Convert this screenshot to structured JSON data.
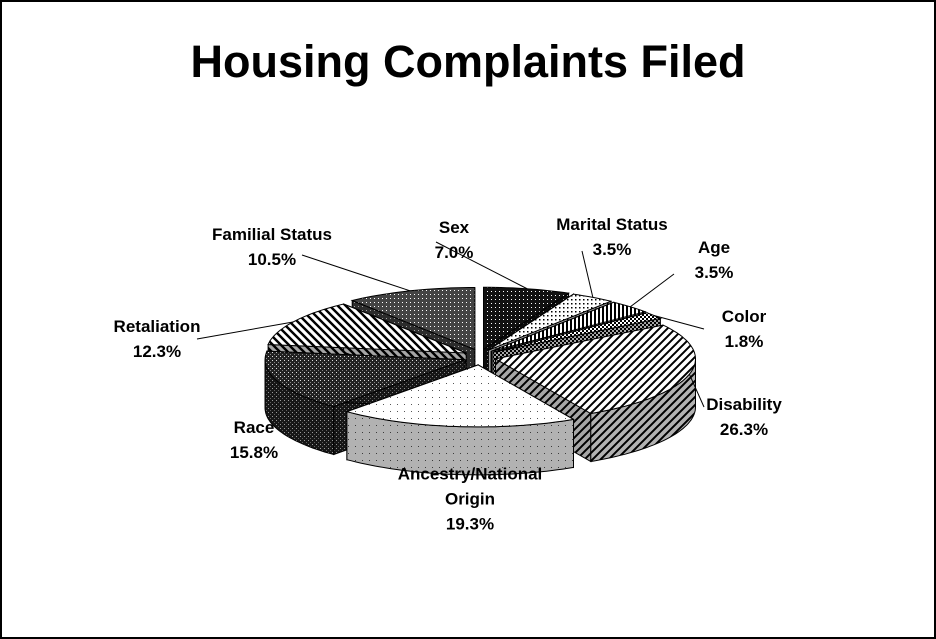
{
  "chart_data": {
    "type": "pie",
    "title": "Housing Complaints Filed",
    "categories": [
      "Sex",
      "Marital Status",
      "Age",
      "Color",
      "Disability",
      "Ancestry/National Origin",
      "Race",
      "Retaliation",
      "Familial Status"
    ],
    "values": [
      7.0,
      3.5,
      3.5,
      1.8,
      26.3,
      19.3,
      15.8,
      12.3,
      10.5
    ],
    "value_labels": [
      "7.0%",
      "3.5%",
      "3.5%",
      "1.8%",
      "26.3%",
      "19.3%",
      "15.8%",
      "12.3%",
      "10.5%"
    ],
    "three_d": true,
    "exploded": true
  }
}
